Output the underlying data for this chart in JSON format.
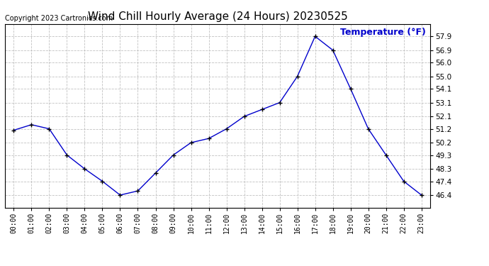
{
  "title": "Wind Chill Hourly Average (24 Hours) 20230525",
  "copyright_text": "Copyright 2023 Cartronics.com",
  "legend_label": "Temperature (°F)",
  "hours": [
    "00:00",
    "01:00",
    "02:00",
    "03:00",
    "04:00",
    "05:00",
    "06:00",
    "07:00",
    "08:00",
    "09:00",
    "10:00",
    "11:00",
    "12:00",
    "13:00",
    "14:00",
    "15:00",
    "16:00",
    "17:00",
    "18:00",
    "19:00",
    "20:00",
    "21:00",
    "22:00",
    "23:00"
  ],
  "values": [
    51.1,
    51.5,
    51.2,
    49.3,
    48.3,
    47.4,
    46.4,
    46.7,
    48.0,
    49.3,
    50.2,
    50.5,
    51.2,
    52.1,
    52.6,
    53.1,
    55.0,
    57.9,
    56.9,
    54.1,
    51.2,
    49.3,
    47.4,
    46.4
  ],
  "ylim_min": 45.5,
  "ylim_max": 58.8,
  "yticks": [
    46.4,
    47.4,
    48.3,
    49.3,
    50.2,
    51.2,
    52.1,
    53.1,
    54.1,
    55.0,
    56.0,
    56.9,
    57.9
  ],
  "line_color": "#0000cc",
  "marker": "+",
  "marker_size": 5,
  "marker_color": "#000000",
  "bg_color": "#ffffff",
  "grid_color": "#bbbbbb",
  "title_fontsize": 11,
  "copyright_fontsize": 7,
  "legend_color": "#0000cc",
  "legend_fontsize": 9
}
